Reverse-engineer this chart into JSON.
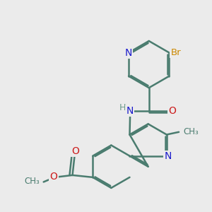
{
  "bg_color": "#ebebeb",
  "bond_color": "#4a7c6f",
  "bond_width": 1.8,
  "dbo": 0.055,
  "atom_colors": {
    "N": "#1a1acc",
    "O": "#cc1a1a",
    "Br": "#cc8800",
    "H": "#6a9a8a",
    "C": "#4a7c6f"
  }
}
